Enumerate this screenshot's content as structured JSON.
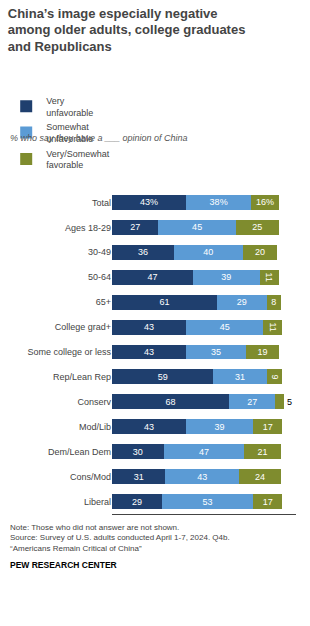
{
  "chart_data": {
    "type": "bar",
    "orientation": "horizontal",
    "stacked": true,
    "title": "China’s image especially negative\namong older adults, college graduates\nand Republicans",
    "subtitle": "% who say they have a ___ opinion of China",
    "categories": [
      "Total",
      "Ages 18-29",
      "30-49",
      "50-64",
      "65+",
      "College grad+",
      "Some college or less",
      "Rep/Lean Rep",
      "Conserv",
      "Mod/Lib",
      "Dem/Lean Dem",
      "Cons/Mod",
      "Liberal"
    ],
    "series": [
      {
        "name": "Very\nunfavorable",
        "color": "#1f3f6e",
        "values": [
          43,
          27,
          36,
          47,
          61,
          43,
          43,
          59,
          68,
          43,
          30,
          31,
          29
        ],
        "value_labels": [
          "43%",
          "27",
          "36",
          "47",
          "61",
          "43",
          "43",
          "59",
          "68",
          "43",
          "30",
          "31",
          "29"
        ]
      },
      {
        "name": "Somewhat\nunfavorable",
        "color": "#5b9bd5",
        "values": [
          38,
          45,
          40,
          39,
          29,
          45,
          35,
          31,
          27,
          39,
          47,
          43,
          53
        ],
        "value_labels": [
          "38%",
          "45",
          "40",
          "39",
          "29",
          "45",
          "35",
          "31",
          "27",
          "39",
          "47",
          "43",
          "53"
        ]
      },
      {
        "name": "Very/Somewhat\nfavorable",
        "color": "#7f8c2e",
        "values": [
          16,
          25,
          20,
          11,
          8,
          11,
          19,
          9,
          5,
          17,
          21,
          24,
          17
        ],
        "value_labels": [
          "16%",
          "25",
          "20",
          "11",
          "8",
          "11",
          "19",
          "9",
          "5",
          "17",
          "21",
          "24",
          "17"
        ]
      }
    ],
    "xlim": [
      0,
      107
    ],
    "grid": false,
    "tick_labels": "y",
    "data_labels": true,
    "legend": "top",
    "annotations": [
      "Note: Those who did not answer are not shown.\nSource: Survey of U.S. adults conducted April 1-7, 2024. Q4b.\n“Americans Remain Critical of China”",
      "PEW RESEARCH CENTER"
    ]
  }
}
